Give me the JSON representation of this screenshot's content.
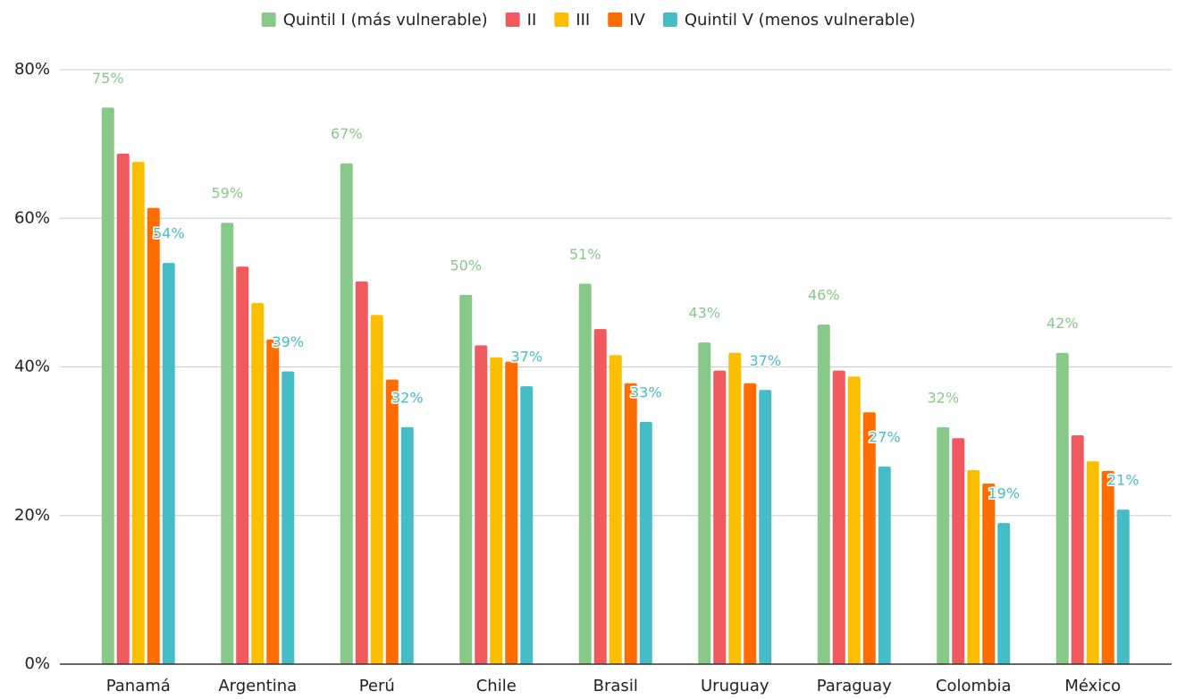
{
  "chart_data": {
    "type": "bar",
    "categories": [
      "Panamá",
      "Argentina",
      "Perú",
      "Chile",
      "Brasil",
      "Uruguay",
      "Paraguay",
      "Colombia",
      "México"
    ],
    "series": [
      {
        "name": "Quintil I (más vulnerable)",
        "color": "#88c888",
        "values": [
          74.9,
          59.4,
          67.4,
          49.7,
          51.2,
          43.3,
          45.7,
          31.9,
          41.9
        ],
        "value_labels": [
          "75%",
          "59%",
          "67%",
          "50%",
          "51%",
          "43%",
          "46%",
          "32%",
          "42%"
        ]
      },
      {
        "name": "II",
        "color": "#f05a5f",
        "values": [
          68.7,
          53.5,
          51.5,
          42.9,
          45.1,
          39.5,
          39.5,
          30.4,
          30.8
        ]
      },
      {
        "name": "III",
        "color": "#fcbf00",
        "values": [
          67.6,
          48.6,
          47.0,
          41.3,
          41.6,
          41.9,
          38.7,
          26.1,
          27.3
        ]
      },
      {
        "name": "IV",
        "color": "#ff6d00",
        "values": [
          61.4,
          43.7,
          38.3,
          40.7,
          37.8,
          37.8,
          33.9,
          24.3,
          26.0
        ]
      },
      {
        "name": "Quintil V (menos vulnerable)",
        "color": "#46bdc6",
        "values": [
          54.0,
          39.4,
          31.9,
          37.4,
          32.6,
          36.9,
          26.6,
          19.0,
          20.8
        ],
        "value_labels": [
          "54%",
          "39%",
          "32%",
          "37%",
          "33%",
          "37%",
          "27%",
          "19%",
          "21%"
        ]
      }
    ],
    "ylim": [
      0,
      80
    ],
    "yticks": [
      {
        "value": 0,
        "label": "0%"
      },
      {
        "value": 20,
        "label": "20%"
      },
      {
        "value": 40,
        "label": "40%"
      },
      {
        "value": 60,
        "label": "60%"
      },
      {
        "value": 80,
        "label": "80%"
      }
    ],
    "grid": true
  }
}
